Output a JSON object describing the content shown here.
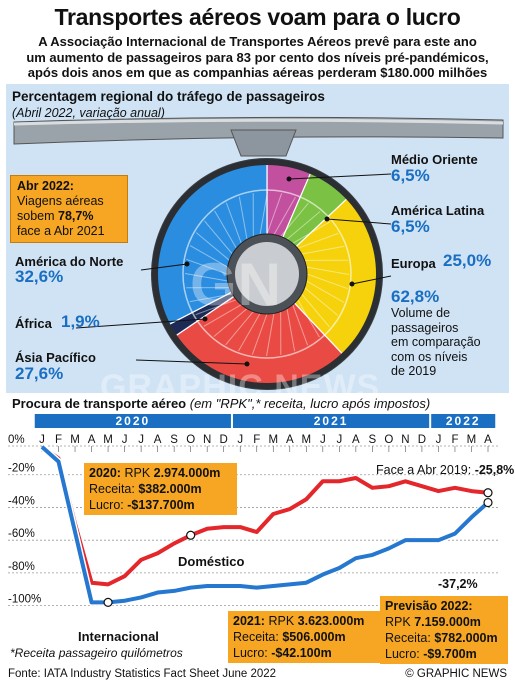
{
  "header": {
    "title": "Transportes aéreos voam para o lucro",
    "subtitle_lines": [
      "A Associação Internacional de Transportes Aéreos prevê para este ano",
      "um aumento de passageiros para 83 por cento dos níveis pré-pandémicos,",
      "após dois anos em que as companhias aéreas perderam $180.000 milhões"
    ]
  },
  "traffic": {
    "title": "Percentagem regional do tráfego de passageiros",
    "subtitle": "(Abril 2022, variação anual)",
    "callout": {
      "line1": "Abr 2022:",
      "line2": "Viagens aéreas",
      "line3_pre": "sobem ",
      "line3_val": "78,7%",
      "line4": "face a Abr 2021"
    },
    "volume": {
      "value": "62,8%",
      "lines": [
        "Volume de",
        "passageiros",
        "em comparação",
        "com os níveis",
        "de 2019"
      ]
    }
  },
  "chart_data": [
    {
      "type": "pie",
      "title": "Percentagem regional do tráfego de passageiros",
      "subtitle": "(Abril 2022, variação anual)",
      "slices": [
        {
          "label": "Médio Oriente",
          "value": 6.5,
          "display": "6,5%",
          "color": "#c2509f"
        },
        {
          "label": "América Latina",
          "value": 6.5,
          "display": "6,5%",
          "color": "#7bc143"
        },
        {
          "label": "Europa",
          "value": 25.0,
          "display": "25,0%",
          "color": "#f5d20b"
        },
        {
          "label": "Ásia Pacífico",
          "value": 27.6,
          "display": "27,6%",
          "color": "#ea4a44"
        },
        {
          "label": "África",
          "value": 1.9,
          "display": "1,9%",
          "color": "#1d2a55"
        },
        {
          "label": "América do Norte",
          "value": 32.6,
          "display": "32,6%",
          "color": "#2a8de0"
        }
      ]
    },
    {
      "type": "line",
      "title": "Procura de transporte aéreo",
      "subtitle": "(em \"RPK\",* receita, lucro após impostos)",
      "years": [
        "2020",
        "2021",
        "2022"
      ],
      "months": [
        "J",
        "F",
        "M",
        "A",
        "M",
        "J",
        "J",
        "A",
        "S",
        "O",
        "N",
        "D",
        "J",
        "F",
        "M",
        "A",
        "M",
        "J",
        "J",
        "A",
        "S",
        "O",
        "N",
        "D",
        "J",
        "F",
        "M",
        "A"
      ],
      "yticks": [
        "0%",
        "-20%",
        "-40%",
        "-60%",
        "-80%",
        "-100%"
      ],
      "ylim": [
        -110,
        0
      ],
      "series": [
        {
          "name": "Doméstico",
          "color": "#e3272b",
          "values": [
            -3,
            -10,
            -50,
            -86,
            -87,
            -82,
            -72,
            -68,
            -62,
            -57,
            -53,
            -52,
            -52,
            -55,
            -44,
            -41,
            -35,
            -24,
            -24,
            -22,
            -28,
            -27,
            -24,
            -27,
            -30,
            -28,
            -30,
            -31
          ]
        },
        {
          "name": "Internacional",
          "color": "#2577cf",
          "values": [
            -3,
            -12,
            -55,
            -98,
            -98,
            -97,
            -95,
            -92,
            -91,
            -89,
            -88,
            -88,
            -88,
            -89,
            -88,
            -87,
            -86,
            -81,
            -77,
            -71,
            -69,
            -65,
            -60,
            -60,
            -60,
            -56,
            -46,
            -37
          ]
        }
      ],
      "annotations": {
        "face_abr_label": "Face a Abr 2019:",
        "face_abr_value": "-25,8%",
        "intl_end": "-37,2%",
        "domestic_label": "Doméstico",
        "intl_label": "Internacional"
      }
    }
  ],
  "boxes": {
    "y2020": {
      "year": "2020:",
      "rpk_label": "RPK",
      "rpk": "2.974.000m",
      "rev_label": "Receita:",
      "rev": "$382.000m",
      "profit_label": "Lucro:",
      "profit": "-$137.700m"
    },
    "y2021": {
      "year": "2021:",
      "rpk_label": "RPK",
      "rpk": "3.623.000m",
      "rev_label": "Receita:",
      "rev": "$506.000m",
      "profit_label": "Lucro:",
      "profit": "-$42.100m"
    },
    "y2022": {
      "year": "Previsão 2022:",
      "rpk_label": "RPK",
      "rpk": "7.159.000m",
      "rev_label": "Receita:",
      "rev": "$782.000m",
      "profit_label": "Lucro:",
      "profit": "-$9.700m"
    }
  },
  "demand": {
    "title": "Procura de transporte aéreo",
    "subtitle": "(em \"RPK\",* receita, lucro após impostos)"
  },
  "footnote": "*Receita passageiro quilómetros",
  "footer": {
    "source": "Fonte: IATA Industry Statistics Fact Sheet June 2022",
    "credit": "© GRAPHIC NEWS"
  },
  "watermark": "GRAPHIC NEWS",
  "colors": {
    "panel": "#cfe3f4",
    "accent_blue": "#1a6fc2",
    "box_orange": "#f6a623"
  }
}
